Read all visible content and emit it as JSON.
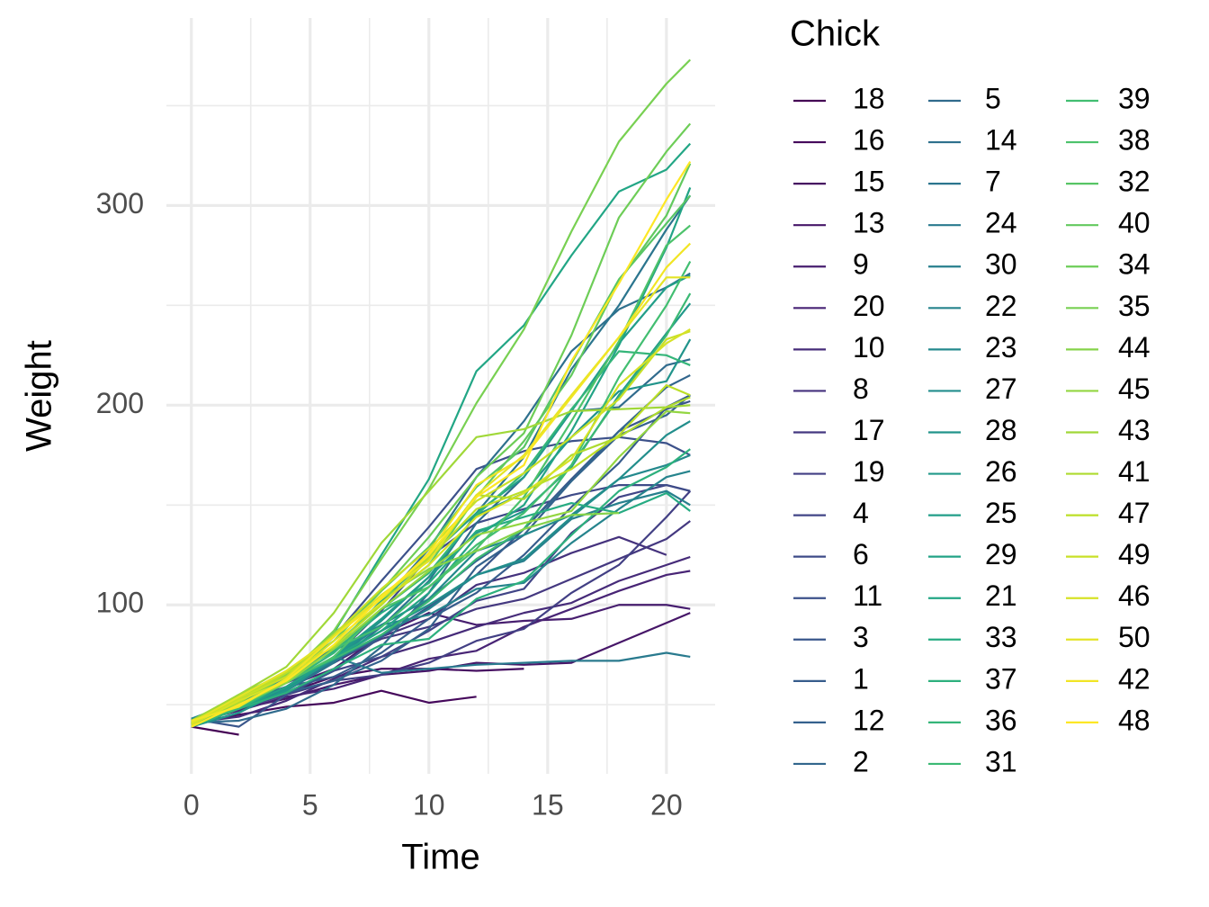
{
  "chart_data": {
    "type": "line",
    "x": [
      0,
      2,
      4,
      6,
      8,
      10,
      12,
      14,
      16,
      18,
      20,
      21
    ],
    "xlabel": "Time",
    "ylabel": "Weight",
    "legend_title": "Chick",
    "xlim": [
      -1.05,
      22.05
    ],
    "xticks": [
      0,
      5,
      10,
      15,
      20
    ],
    "xminorticks": [
      2.5,
      7.5,
      12.5,
      17.5
    ],
    "ylim": [
      15.4,
      393.9
    ],
    "yticks": [
      100,
      200,
      300
    ],
    "yminorticks": [
      50,
      150,
      250,
      350
    ],
    "grid": true,
    "legend": "right",
    "series": [
      {
        "name": "18",
        "color": "#440154",
        "values": [
          39,
          35,
          null,
          null,
          null,
          null,
          null,
          null,
          null,
          null,
          null,
          null
        ]
      },
      {
        "name": "16",
        "color": "#45085b",
        "values": [
          41,
          45,
          49,
          51,
          57,
          51,
          54,
          null,
          null,
          null,
          null,
          null
        ]
      },
      {
        "name": "15",
        "color": "#460f61",
        "values": [
          41,
          49,
          56,
          64,
          68,
          68,
          67,
          68,
          null,
          null,
          null,
          null
        ]
      },
      {
        "name": "13",
        "color": "#461668",
        "values": [
          41,
          48,
          53,
          60,
          65,
          67,
          71,
          70,
          71,
          81,
          91,
          96
        ]
      },
      {
        "name": "9",
        "color": "#471e6f",
        "values": [
          42,
          51,
          59,
          68,
          85,
          96,
          90,
          92,
          93,
          100,
          100,
          98
        ]
      },
      {
        "name": "20",
        "color": "#482475",
        "values": [
          41,
          47,
          54,
          58,
          65,
          73,
          77,
          89,
          98,
          107,
          115,
          117
        ]
      },
      {
        "name": "10",
        "color": "#462b79",
        "values": [
          41,
          44,
          52,
          63,
          74,
          81,
          89,
          96,
          101,
          112,
          120,
          124
        ]
      },
      {
        "name": "8",
        "color": "#45327d",
        "values": [
          42,
          50,
          61,
          71,
          84,
          93,
          110,
          116,
          126,
          134,
          125,
          null
        ]
      },
      {
        "name": "17",
        "color": "#443880",
        "values": [
          42,
          51,
          61,
          72,
          83,
          89,
          98,
          103,
          113,
          123,
          133,
          142
        ]
      },
      {
        "name": "19",
        "color": "#423f84",
        "values": [
          43,
          48,
          55,
          62,
          65,
          71,
          82,
          88,
          106,
          120,
          144,
          157
        ]
      },
      {
        "name": "4",
        "color": "#414587",
        "values": [
          42,
          49,
          56,
          67,
          74,
          87,
          102,
          108,
          136,
          154,
          160,
          157
        ]
      },
      {
        "name": "6",
        "color": "#3e4b88",
        "values": [
          41,
          49,
          59,
          74,
          97,
          124,
          141,
          148,
          155,
          160,
          160,
          157
        ]
      },
      {
        "name": "11",
        "color": "#3c518a",
        "values": [
          43,
          51,
          63,
          84,
          112,
          139,
          168,
          177,
          182,
          184,
          181,
          175
        ]
      },
      {
        "name": "3",
        "color": "#39568b",
        "values": [
          43,
          39,
          55,
          67,
          84,
          99,
          115,
          138,
          163,
          187,
          198,
          202
        ]
      },
      {
        "name": "1",
        "color": "#375c8c",
        "values": [
          42,
          51,
          59,
          64,
          76,
          93,
          106,
          125,
          149,
          171,
          199,
          205
        ]
      },
      {
        "name": "12",
        "color": "#34618d",
        "values": [
          41,
          49,
          56,
          62,
          72,
          88,
          119,
          135,
          162,
          185,
          195,
          205
        ]
      },
      {
        "name": "2",
        "color": "#32668d",
        "values": [
          40,
          49,
          58,
          72,
          84,
          103,
          122,
          138,
          162,
          187,
          209,
          215
        ]
      },
      {
        "name": "5",
        "color": "#306b8d",
        "values": [
          41,
          42,
          48,
          60,
          79,
          106,
          141,
          164,
          197,
          199,
          220,
          223
        ]
      },
      {
        "name": "14",
        "color": "#2e708d",
        "values": [
          41,
          49,
          62,
          79,
          101,
          128,
          164,
          192,
          227,
          248,
          259,
          266
        ]
      },
      {
        "name": "7",
        "color": "#2b758e",
        "values": [
          41,
          49,
          57,
          71,
          89,
          112,
          146,
          174,
          218,
          250,
          288,
          305
        ]
      },
      {
        "name": "24",
        "color": "#297a8e",
        "values": [
          42,
          52,
          58,
          74,
          66,
          68,
          70,
          71,
          72,
          72,
          76,
          74
        ]
      },
      {
        "name": "30",
        "color": "#277f8d",
        "values": [
          42,
          48,
          59,
          72,
          85,
          98,
          115,
          122,
          143,
          151,
          157,
          150
        ]
      },
      {
        "name": "22",
        "color": "#26848d",
        "values": [
          41,
          55,
          64,
          77,
          90,
          95,
          108,
          111,
          131,
          148,
          164,
          167
        ]
      },
      {
        "name": "23",
        "color": "#24898d",
        "values": [
          43,
          52,
          61,
          73,
          90,
          103,
          127,
          135,
          145,
          163,
          170,
          175
        ]
      },
      {
        "name": "27",
        "color": "#228e8c",
        "values": [
          39,
          46,
          58,
          73,
          87,
          100,
          115,
          123,
          144,
          163,
          185,
          192
        ]
      },
      {
        "name": "28",
        "color": "#21948b",
        "values": [
          39,
          46,
          58,
          73,
          92,
          114,
          145,
          156,
          184,
          207,
          212,
          233
        ]
      },
      {
        "name": "26",
        "color": "#21998a",
        "values": [
          42,
          48,
          57,
          74,
          93,
          114,
          136,
          147,
          169,
          205,
          236,
          251
        ]
      },
      {
        "name": "25",
        "color": "#229e88",
        "values": [
          40,
          49,
          62,
          78,
          102,
          124,
          146,
          164,
          197,
          231,
          259,
          265
        ]
      },
      {
        "name": "29",
        "color": "#22a386",
        "values": [
          39,
          48,
          59,
          74,
          87,
          106,
          134,
          150,
          187,
          230,
          279,
          309
        ]
      },
      {
        "name": "21",
        "color": "#22a685",
        "values": [
          40,
          50,
          62,
          86,
          125,
          163,
          217,
          240,
          275,
          307,
          318,
          331
        ]
      },
      {
        "name": "33",
        "color": "#26ab82",
        "values": [
          39,
          50,
          63,
          77,
          96,
          111,
          137,
          144,
          151,
          146,
          156,
          147
        ]
      },
      {
        "name": "37",
        "color": "#2db07d",
        "values": [
          41,
          48,
          56,
          68,
          80,
          83,
          103,
          112,
          135,
          157,
          169,
          178
        ]
      },
      {
        "name": "36",
        "color": "#34b579",
        "values": [
          39,
          48,
          61,
          76,
          98,
          116,
          145,
          166,
          198,
          227,
          225,
          220
        ]
      },
      {
        "name": "31",
        "color": "#3bb974",
        "values": [
          42,
          53,
          62,
          73,
          85,
          102,
          123,
          138,
          170,
          204,
          235,
          256
        ]
      },
      {
        "name": "39",
        "color": "#42be71",
        "values": [
          42,
          50,
          61,
          78,
          89,
          109,
          130,
          146,
          170,
          214,
          250,
          272
        ]
      },
      {
        "name": "38",
        "color": "#4cc26b",
        "values": [
          41,
          49,
          61,
          74,
          98,
          109,
          128,
          154,
          192,
          232,
          280,
          290
        ]
      },
      {
        "name": "32",
        "color": "#57c565",
        "values": [
          41,
          49,
          65,
          82,
          107,
          129,
          159,
          179,
          221,
          263,
          291,
          305
        ]
      },
      {
        "name": "40",
        "color": "#62c95e",
        "values": [
          41,
          55,
          66,
          79,
          101,
          120,
          154,
          182,
          215,
          262,
          295,
          321
        ]
      },
      {
        "name": "34",
        "color": "#6dcd57",
        "values": [
          41,
          49,
          63,
          85,
          107,
          134,
          164,
          186,
          235,
          294,
          327,
          341
        ]
      },
      {
        "name": "35",
        "color": "#78d052",
        "values": [
          41,
          53,
          64,
          87,
          123,
          158,
          201,
          238,
          287,
          332,
          361,
          373
        ]
      },
      {
        "name": "44",
        "color": "#85d34a",
        "values": [
          42,
          51,
          65,
          86,
          103,
          118,
          127,
          138,
          145,
          146,
          null,
          null
        ]
      },
      {
        "name": "45",
        "color": "#93d641",
        "values": [
          41,
          50,
          61,
          78,
          98,
          117,
          135,
          141,
          147,
          174,
          197,
          196
        ]
      },
      {
        "name": "43",
        "color": "#a0d838",
        "values": [
          42,
          55,
          69,
          96,
          131,
          157,
          184,
          188,
          197,
          198,
          199,
          200
        ]
      },
      {
        "name": "41",
        "color": "#aedb2f",
        "values": [
          42,
          51,
          66,
          85,
          103,
          124,
          155,
          153,
          175,
          184,
          199,
          204
        ]
      },
      {
        "name": "47",
        "color": "#bcdf27",
        "values": [
          41,
          53,
          66,
          79,
          100,
          123,
          148,
          157,
          168,
          185,
          210,
          205
        ]
      },
      {
        "name": "49",
        "color": "#c9e027",
        "values": [
          40,
          53,
          64,
          85,
          108,
          128,
          152,
          166,
          184,
          203,
          233,
          237
        ]
      },
      {
        "name": "46",
        "color": "#d6e226",
        "values": [
          40,
          52,
          62,
          82,
          101,
          120,
          144,
          156,
          173,
          210,
          231,
          238
        ]
      },
      {
        "name": "50",
        "color": "#e4e426",
        "values": [
          41,
          54,
          67,
          84,
          105,
          122,
          155,
          175,
          205,
          234,
          264,
          264
        ]
      },
      {
        "name": "42",
        "color": "#f1e525",
        "values": [
          42,
          49,
          63,
          84,
          103,
          126,
          160,
          174,
          204,
          234,
          269,
          281
        ]
      },
      {
        "name": "48",
        "color": "#fde725",
        "values": [
          39,
          50,
          62,
          80,
          104,
          125,
          154,
          170,
          222,
          261,
          303,
          322
        ]
      }
    ]
  }
}
